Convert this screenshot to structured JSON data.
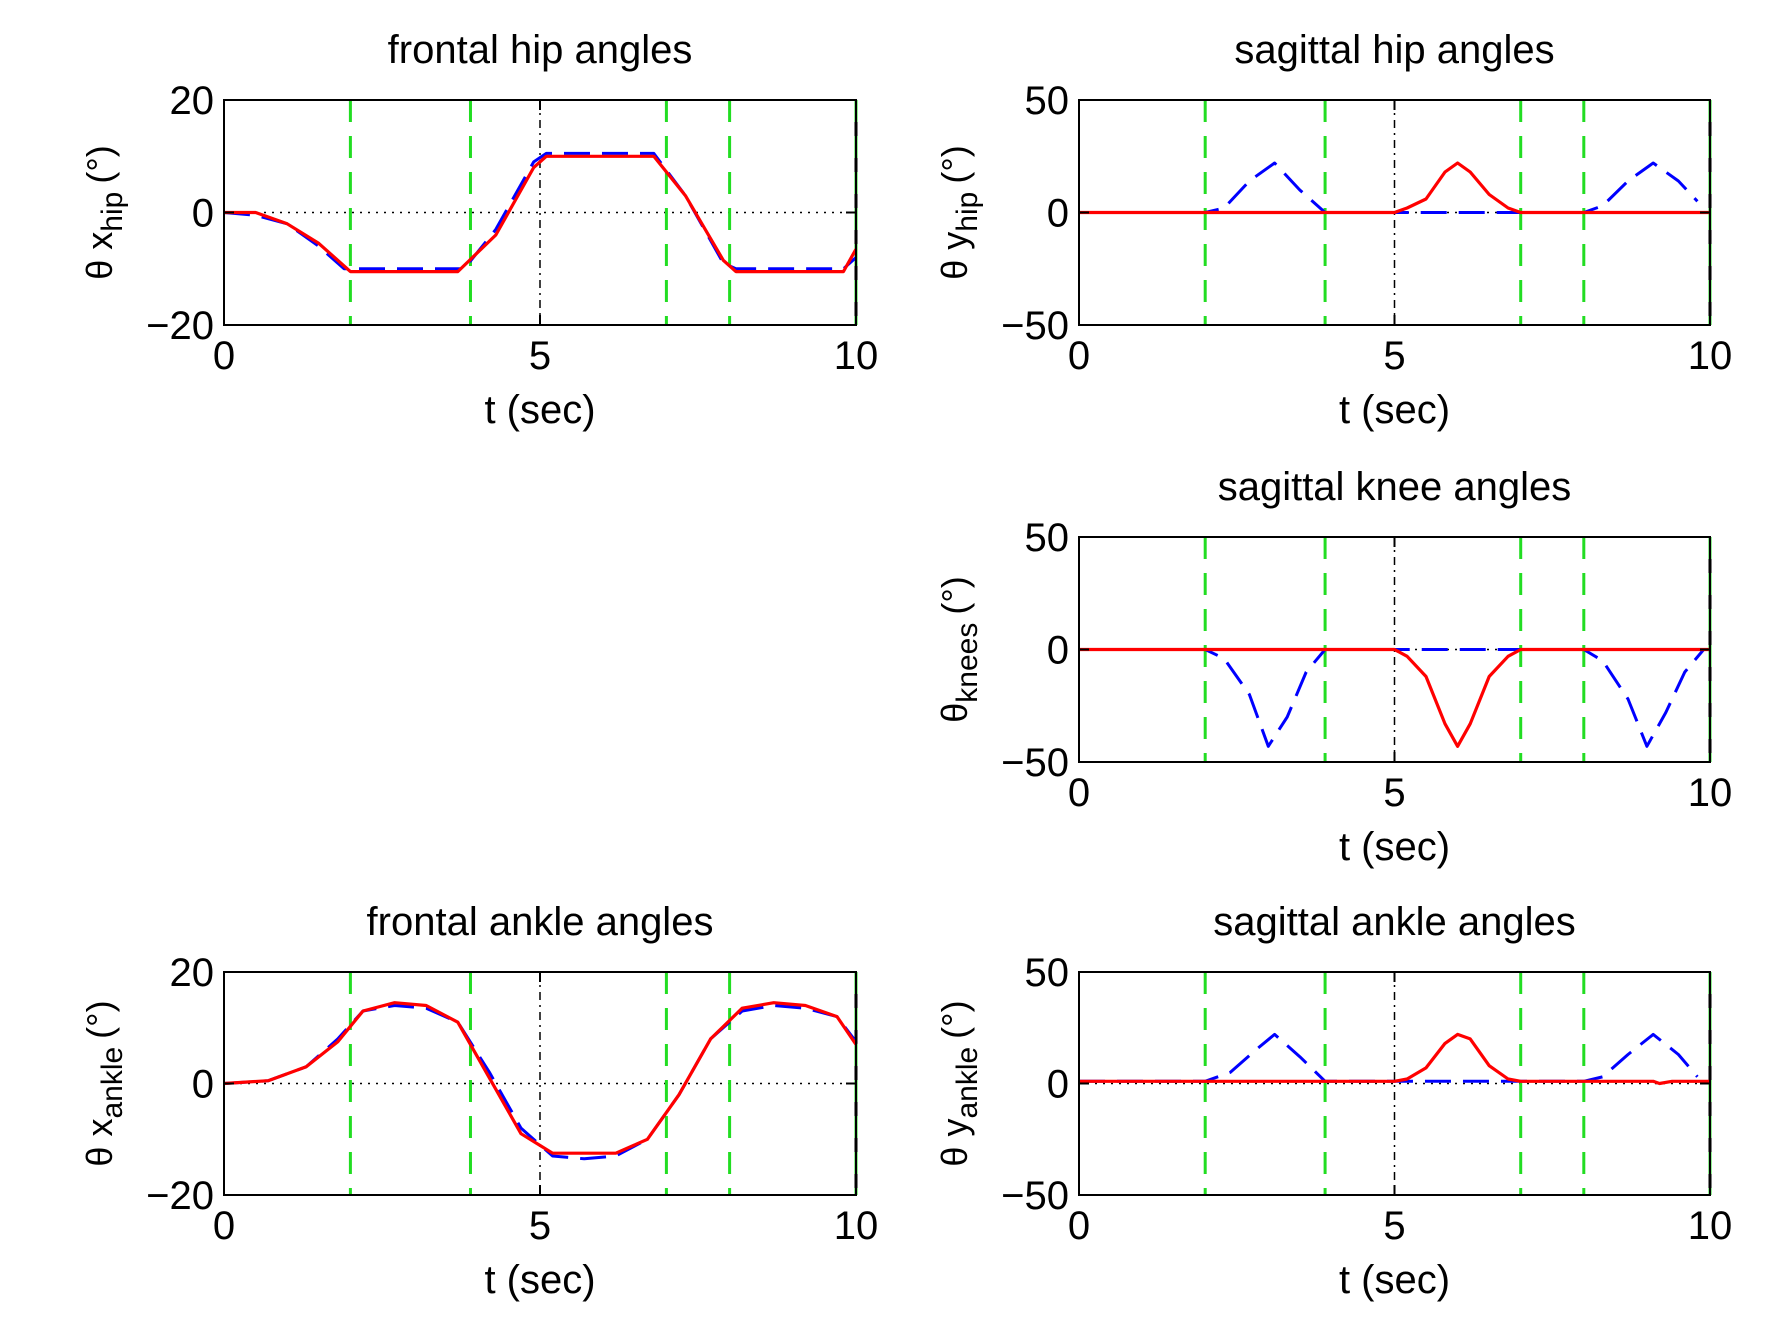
{
  "chart_data": [
    {
      "type": "line",
      "title": "frontal hip angles",
      "xlabel": "t (sec)",
      "ylabel_main": "θ x",
      "ylabel_sub": "hip",
      "ylabel_unit": "(°)",
      "xlim": [
        0,
        10
      ],
      "ylim": [
        -20,
        20
      ],
      "xticks": [
        0,
        5,
        10
      ],
      "yticks": [
        -20,
        0,
        20
      ],
      "xtick_labels": [
        "0",
        "5",
        "10"
      ],
      "ytick_labels": [
        "−20",
        "0",
        "20"
      ],
      "phase_lines": [
        2,
        3.9,
        7,
        8,
        10
      ],
      "center_line": 5,
      "zero_line": 0,
      "series": [
        {
          "style": "dashed",
          "color": "#0000ff",
          "x": [
            0,
            0.5,
            1,
            1.5,
            1.9,
            2.1,
            3.8,
            4.3,
            4.9,
            5.1,
            6.8,
            7.3,
            7.9,
            8.1,
            9.8,
            10
          ],
          "y": [
            0,
            -0.5,
            -2,
            -6,
            -10,
            -10,
            -10,
            -3,
            9,
            10.5,
            10.5,
            3,
            -9,
            -10,
            -10,
            -8
          ]
        },
        {
          "style": "solid",
          "color": "#ff0000",
          "x": [
            0,
            0.5,
            1,
            1.5,
            2,
            2.1,
            3.7,
            4.3,
            4.9,
            5.1,
            6.8,
            7.3,
            7.9,
            8.1,
            9.8,
            10
          ],
          "y": [
            0,
            0,
            -2,
            -5.5,
            -10.5,
            -10.5,
            -10.5,
            -4,
            8,
            10,
            10,
            3,
            -8.5,
            -10.5,
            -10.5,
            -6.5
          ]
        }
      ]
    },
    {
      "type": "line",
      "title": "sagittal hip angles",
      "xlabel": "t (sec)",
      "ylabel_main": "θ y",
      "ylabel_sub": "hip",
      "ylabel_unit": "(°)",
      "xlim": [
        0,
        10
      ],
      "ylim": [
        -50,
        50
      ],
      "xticks": [
        0,
        5,
        10
      ],
      "yticks": [
        -50,
        0,
        50
      ],
      "xtick_labels": [
        "0",
        "5",
        "10"
      ],
      "ytick_labels": [
        "−50",
        "0",
        "50"
      ],
      "phase_lines": [
        2,
        3.9,
        7,
        8,
        10
      ],
      "center_line": 5,
      "zero_line": 0,
      "series": [
        {
          "style": "dashed",
          "color": "#0000ff",
          "x": [
            0,
            2,
            2.3,
            2.7,
            3.1,
            3.5,
            3.9,
            8,
            8.3,
            8.7,
            9.1,
            9.5,
            9.8
          ],
          "y": [
            0,
            0,
            2,
            14,
            22,
            10,
            0,
            0,
            3,
            14,
            22,
            14,
            5
          ]
        },
        {
          "style": "solid",
          "color": "#ff0000",
          "x": [
            0,
            5,
            5.2,
            5.5,
            5.8,
            6,
            6.2,
            6.5,
            6.8,
            7,
            10
          ],
          "y": [
            0,
            0,
            2,
            6,
            18,
            22,
            18,
            8,
            2,
            0,
            0
          ]
        }
      ]
    },
    {
      "type": "line",
      "title": "sagittal knee angles",
      "xlabel": "t (sec)",
      "ylabel_main": "θ",
      "ylabel_sub": "knees",
      "ylabel_unit": "(°)",
      "xlim": [
        0,
        10
      ],
      "ylim": [
        -50,
        50
      ],
      "xticks": [
        0,
        5,
        10
      ],
      "yticks": [
        -50,
        0,
        50
      ],
      "xtick_labels": [
        "0",
        "5",
        "10"
      ],
      "ytick_labels": [
        "−50",
        "0",
        "50"
      ],
      "phase_lines": [
        2,
        3.9,
        7,
        8,
        10
      ],
      "center_line": 5,
      "zero_line": 0,
      "series": [
        {
          "style": "dashed",
          "color": "#0000ff",
          "x": [
            0,
            2,
            2.3,
            2.7,
            3,
            3.3,
            3.6,
            3.9,
            8,
            8.3,
            8.7,
            9,
            9.3,
            9.6,
            9.9
          ],
          "y": [
            0,
            0,
            -4,
            -20,
            -43,
            -30,
            -10,
            0,
            0,
            -5,
            -22,
            -43,
            -28,
            -10,
            0
          ]
        },
        {
          "style": "solid",
          "color": "#ff0000",
          "x": [
            0,
            5,
            5.2,
            5.5,
            5.8,
            6,
            6.2,
            6.5,
            6.8,
            7,
            10
          ],
          "y": [
            0,
            0,
            -3,
            -12,
            -33,
            -43,
            -33,
            -12,
            -3,
            0,
            0
          ]
        }
      ]
    },
    {
      "type": "line",
      "title": "frontal ankle angles",
      "xlabel": "t (sec)",
      "ylabel_main": "θ x",
      "ylabel_sub": "ankle",
      "ylabel_unit": "(°)",
      "xlim": [
        0,
        10
      ],
      "ylim": [
        -20,
        20
      ],
      "xticks": [
        0,
        5,
        10
      ],
      "yticks": [
        -20,
        0,
        20
      ],
      "xtick_labels": [
        "0",
        "5",
        "10"
      ],
      "ytick_labels": [
        "−20",
        "0",
        "20"
      ],
      "phase_lines": [
        2,
        3.9,
        7,
        8,
        10
      ],
      "center_line": 5,
      "zero_line": 0,
      "series": [
        {
          "style": "dashed",
          "color": "#0000ff",
          "x": [
            0,
            0.7,
            1.3,
            1.8,
            2.2,
            2.7,
            3.2,
            3.7,
            4.2,
            4.7,
            5.2,
            5.7,
            6.2,
            6.7,
            7.2,
            7.7,
            8.2,
            8.7,
            9.2,
            9.7,
            10
          ],
          "y": [
            0,
            0.5,
            3,
            8,
            13,
            14,
            13.5,
            11,
            2,
            -8,
            -13,
            -13.5,
            -13,
            -10,
            -2,
            8,
            13,
            14,
            13.5,
            12,
            7.5
          ]
        },
        {
          "style": "solid",
          "color": "#ff0000",
          "x": [
            0,
            0.7,
            1.3,
            1.8,
            2.2,
            2.7,
            3.2,
            3.7,
            4.2,
            4.7,
            5.2,
            5.7,
            6.2,
            6.7,
            7.2,
            7.7,
            8.2,
            8.7,
            9.2,
            9.7,
            10
          ],
          "y": [
            0,
            0.5,
            3,
            7.5,
            13,
            14.5,
            14,
            11,
            1,
            -9,
            -12.5,
            -12.5,
            -12.5,
            -10,
            -2,
            8,
            13.5,
            14.5,
            14,
            12,
            7
          ]
        }
      ]
    },
    {
      "type": "line",
      "title": "sagittal ankle angles",
      "xlabel": "t (sec)",
      "ylabel_main": "θ y",
      "ylabel_sub": "ankle",
      "ylabel_unit": "(°)",
      "xlim": [
        0,
        10
      ],
      "ylim": [
        -50,
        50
      ],
      "xticks": [
        0,
        5,
        10
      ],
      "yticks": [
        -50,
        0,
        50
      ],
      "xtick_labels": [
        "0",
        "5",
        "10"
      ],
      "ytick_labels": [
        "−50",
        "0",
        "50"
      ],
      "phase_lines": [
        2,
        3.9,
        7,
        8,
        10
      ],
      "center_line": 5,
      "zero_line": 0,
      "series": [
        {
          "style": "dashed",
          "color": "#0000ff",
          "x": [
            0,
            2,
            2.4,
            2.8,
            3.1,
            3.5,
            3.9,
            8,
            8.3,
            8.7,
            9.1,
            9.5,
            9.8
          ],
          "y": [
            1,
            1,
            5,
            15,
            22,
            12,
            1,
            1,
            3,
            13,
            22,
            13,
            3
          ]
        },
        {
          "style": "solid",
          "color": "#ff0000",
          "x": [
            0,
            5,
            5.2,
            5.5,
            5.8,
            6,
            6.2,
            6.5,
            6.8,
            7,
            9.1,
            9.2,
            9.4,
            10
          ],
          "y": [
            1,
            1,
            2,
            7,
            18,
            22,
            20,
            8,
            2,
            1,
            1,
            0,
            1,
            1
          ]
        }
      ]
    }
  ]
}
